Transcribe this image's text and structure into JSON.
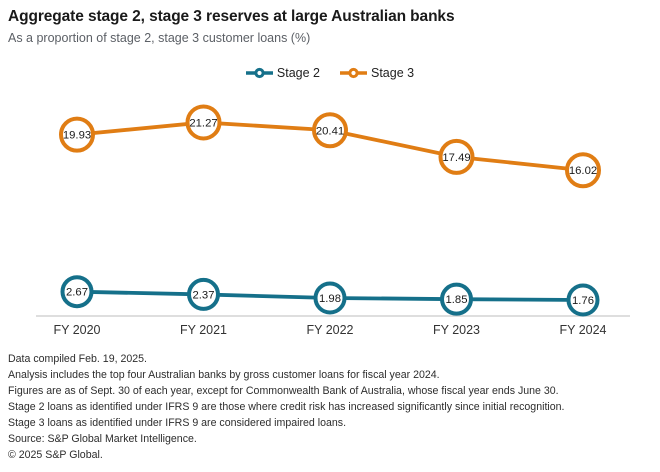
{
  "header": {
    "title": "Aggregate stage 2, stage 3 reserves at large Australian banks",
    "subtitle": "As a proportion of stage 2, stage 3 customer loans (%)"
  },
  "legend": [
    {
      "label": "Stage 2",
      "color": "#15708A"
    },
    {
      "label": "Stage 3",
      "color": "#E07D14"
    }
  ],
  "chart_data": {
    "type": "line",
    "title": "Aggregate stage 2, stage 3 reserves at large Australian banks",
    "subtitle": "As a proportion of stage 2, stage 3 customer loans (%)",
    "categories": [
      "FY 2020",
      "FY 2021",
      "FY 2022",
      "FY 2023",
      "FY 2024"
    ],
    "series": [
      {
        "name": "Stage 2",
        "color": "#15708A",
        "values": [
          2.67,
          2.37,
          1.98,
          1.85,
          1.76
        ],
        "marker_radius": 14.5
      },
      {
        "name": "Stage 3",
        "color": "#E07D14",
        "values": [
          19.93,
          21.27,
          20.41,
          17.49,
          16.02
        ],
        "marker_radius": 16
      }
    ],
    "xlabel": "",
    "ylabel": "",
    "ylim": [
      0,
      25
    ],
    "grid": false,
    "legend_position": "top-center",
    "data_labels": "values shown inside circular markers",
    "axis_line_color": "#c9cacb",
    "label_color": "#1a1a1a",
    "tick_label_color": "#333333"
  },
  "footnotes": [
    "Data compiled Feb. 19, 2025.",
    "Analysis includes the top four Australian banks by gross customer loans for fiscal year 2024.",
    "Figures are as of Sept. 30 of each year, except for Commonwealth Bank of Australia, whose fiscal year ends June 30.",
    "Stage 2 loans as identified under IFRS 9 are those where credit risk has increased significantly since initial recognition.",
    "Stage 3 loans as identified under IFRS 9 are considered impaired loans.",
    "Source: S&P Global Market Intelligence.",
    "© 2025 S&P Global."
  ]
}
